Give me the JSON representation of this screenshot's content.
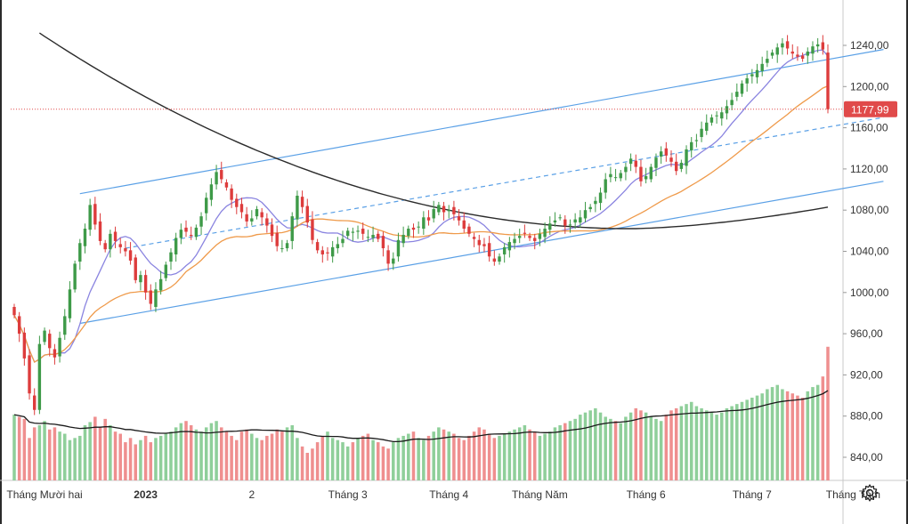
{
  "chart_data": {
    "type": "candlestick",
    "y_ticks": [
      "1240,00",
      "1200,00",
      "1160,00",
      "1120,00",
      "1080,00",
      "1040,00",
      "1000,00",
      "960,00",
      "920,00",
      "880,00",
      "840,00"
    ],
    "y_tick_values": [
      1240,
      1200,
      1160,
      1120,
      1080,
      1040,
      1000,
      960,
      920,
      880,
      840
    ],
    "ylim": [
      814,
      1262
    ],
    "time_labels": [
      {
        "text": "Tháng Mười hai",
        "index": 6,
        "bold": false
      },
      {
        "text": "2023",
        "index": 26,
        "bold": true
      },
      {
        "text": "2",
        "index": 47,
        "bold": false
      },
      {
        "text": "Tháng 3",
        "index": 66,
        "bold": false
      },
      {
        "text": "Tháng 4",
        "index": 86,
        "bold": false
      },
      {
        "text": "Tháng Năm",
        "index": 104,
        "bold": false
      },
      {
        "text": "Tháng 6",
        "index": 125,
        "bold": false
      },
      {
        "text": "Tháng 7",
        "index": 146,
        "bold": false
      },
      {
        "text": "Tháng Tám",
        "index": 166,
        "bold": false
      }
    ],
    "last_price": {
      "label": "1177,99",
      "value": 1177.99,
      "color": "#e04a4a"
    },
    "colors": {
      "up": "#3e9a48",
      "down": "#dd3c3c",
      "vol_up": "#8fcf9a",
      "vol_down": "#ef8f8f",
      "ma_fast": "#8a84e0",
      "ma_mid": "#ef9a4a",
      "ma_slow": "#2b2b2b",
      "channel": "#5aa0e6",
      "vol_ma": "#1a1a1a",
      "price_line": "#e04a4a"
    },
    "closes": [
      978,
      960,
      936,
      902,
      886,
      950,
      963,
      946,
      937,
      956,
      977,
      1003,
      1028,
      1048,
      1062,
      1085,
      1066,
      1050,
      1042,
      1057,
      1050,
      1044,
      1040,
      1031,
      1012,
      1017,
      1000,
      989,
      1003,
      1013,
      1027,
      1039,
      1053,
      1061,
      1059,
      1055,
      1063,
      1074,
      1092,
      1105,
      1117,
      1110,
      1102,
      1090,
      1083,
      1078,
      1069,
      1072,
      1081,
      1073,
      1065,
      1055,
      1045,
      1043,
      1048,
      1074,
      1094,
      1083,
      1068,
      1051,
      1041,
      1037,
      1038,
      1044,
      1047,
      1052,
      1060,
      1059,
      1060,
      1057,
      1054,
      1056,
      1052,
      1043,
      1028,
      1033,
      1051,
      1056,
      1062,
      1061,
      1064,
      1073,
      1070,
      1081,
      1085,
      1078,
      1080,
      1076,
      1070,
      1062,
      1057,
      1052,
      1046,
      1045,
      1035,
      1030,
      1035,
      1044,
      1049,
      1052,
      1055,
      1057,
      1053,
      1050,
      1057,
      1062,
      1067,
      1070,
      1073,
      1065,
      1066,
      1071,
      1073,
      1080,
      1083,
      1089,
      1097,
      1110,
      1115,
      1112,
      1116,
      1122,
      1130,
      1122,
      1108,
      1113,
      1122,
      1131,
      1137,
      1133,
      1127,
      1118,
      1126,
      1139,
      1146,
      1148,
      1159,
      1165,
      1170,
      1172,
      1175,
      1181,
      1187,
      1195,
      1203,
      1208,
      1212,
      1216,
      1222,
      1227,
      1233,
      1238,
      1242,
      1237,
      1232,
      1229,
      1227,
      1234,
      1239,
      1241,
      1236,
      1178
    ],
    "volumes": [
      882,
      880,
      878,
      860,
      870,
      872,
      876,
      868,
      870,
      866,
      864,
      858,
      860,
      862,
      872,
      875,
      880,
      870,
      878,
      872,
      866,
      864,
      856,
      860,
      854,
      858,
      862,
      856,
      860,
      862,
      864,
      866,
      870,
      874,
      876,
      872,
      868,
      866,
      870,
      874,
      876,
      870,
      866,
      862,
      858,
      866,
      868,
      864,
      860,
      858,
      862,
      864,
      868,
      866,
      870,
      872,
      860,
      852,
      846,
      850,
      856,
      862,
      866,
      860,
      858,
      856,
      852,
      856,
      860,
      862,
      864,
      858,
      856,
      852,
      850,
      856,
      860,
      862,
      864,
      866,
      860,
      858,
      862,
      866,
      870,
      868,
      866,
      864,
      860,
      858,
      862,
      866,
      870,
      868,
      864,
      860,
      862,
      864,
      866,
      868,
      870,
      872,
      868,
      866,
      862,
      864,
      866,
      870,
      872,
      874,
      876,
      878,
      882,
      884,
      886,
      888,
      884,
      880,
      878,
      876,
      874,
      880,
      884,
      888,
      886,
      884,
      880,
      878,
      876,
      882,
      886,
      888,
      890,
      892,
      894,
      890,
      888,
      886,
      884,
      882,
      884,
      888,
      890,
      892,
      894,
      896,
      898,
      900,
      902,
      906,
      908,
      910,
      906,
      904,
      902,
      900,
      898,
      904,
      908,
      910,
      918,
      946
    ],
    "channel_note": ""
  }
}
